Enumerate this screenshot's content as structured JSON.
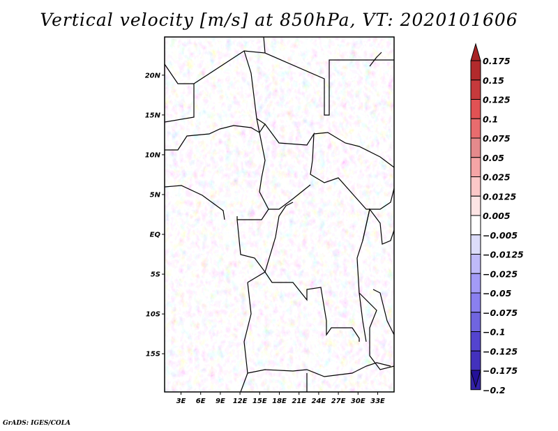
{
  "title": "Vertical velocity [m/s] at 850hPa, VT: 2020101606",
  "credit": "GrADS: IGES/COLA",
  "map": {
    "variable": "Vertical velocity",
    "units": "m/s",
    "level": "850hPa",
    "valid_time": "2020101606",
    "lat_ticks": [
      {
        "value": 20,
        "label": "20N"
      },
      {
        "value": 15,
        "label": "15N"
      },
      {
        "value": 10,
        "label": "10N"
      },
      {
        "value": 5,
        "label": "5N"
      },
      {
        "value": 0,
        "label": "EQ"
      },
      {
        "value": -5,
        "label": "5S"
      },
      {
        "value": -10,
        "label": "10S"
      },
      {
        "value": -15,
        "label": "15S"
      }
    ],
    "lon_ticks": [
      {
        "value": 3,
        "label": "3E"
      },
      {
        "value": 6,
        "label": "6E"
      },
      {
        "value": 9,
        "label": "9E"
      },
      {
        "value": 12,
        "label": "12E"
      },
      {
        "value": 15,
        "label": "15E"
      },
      {
        "value": 18,
        "label": "18E"
      },
      {
        "value": 21,
        "label": "21E"
      },
      {
        "value": 24,
        "label": "24E"
      },
      {
        "value": 27,
        "label": "27E"
      },
      {
        "value": 30,
        "label": "30E"
      },
      {
        "value": 33,
        "label": "33E"
      }
    ],
    "lon_range": [
      0.5,
      35.5
    ],
    "lat_range": [
      -19.8,
      24.8
    ]
  },
  "colorbar": {
    "labels": [
      "0.175",
      "0.15",
      "0.125",
      "0.1",
      "0.075",
      "0.05",
      "0.025",
      "0.0125",
      "0.005",
      "-0.005",
      "-0.0125",
      "-0.025",
      "-0.05",
      "-0.075",
      "-0.1",
      "-0.125",
      "-0.175",
      "-0.2"
    ],
    "colors": [
      "#b22a2c",
      "#c63a3c",
      "#e15254",
      "#e86c6e",
      "#e48a8c",
      "#f5a5a6",
      "#fcc8c8",
      "#fde4e4",
      "#ffffff",
      "#dcdcfa",
      "#bfbaf9",
      "#a39bf7",
      "#8a80ef",
      "#7065df",
      "#5444cf",
      "#4331bd",
      "#3322a8",
      "#2a1a9c"
    ],
    "top_arrow_color": "#a82426",
    "bottom_arrow_color": "#24109a"
  }
}
